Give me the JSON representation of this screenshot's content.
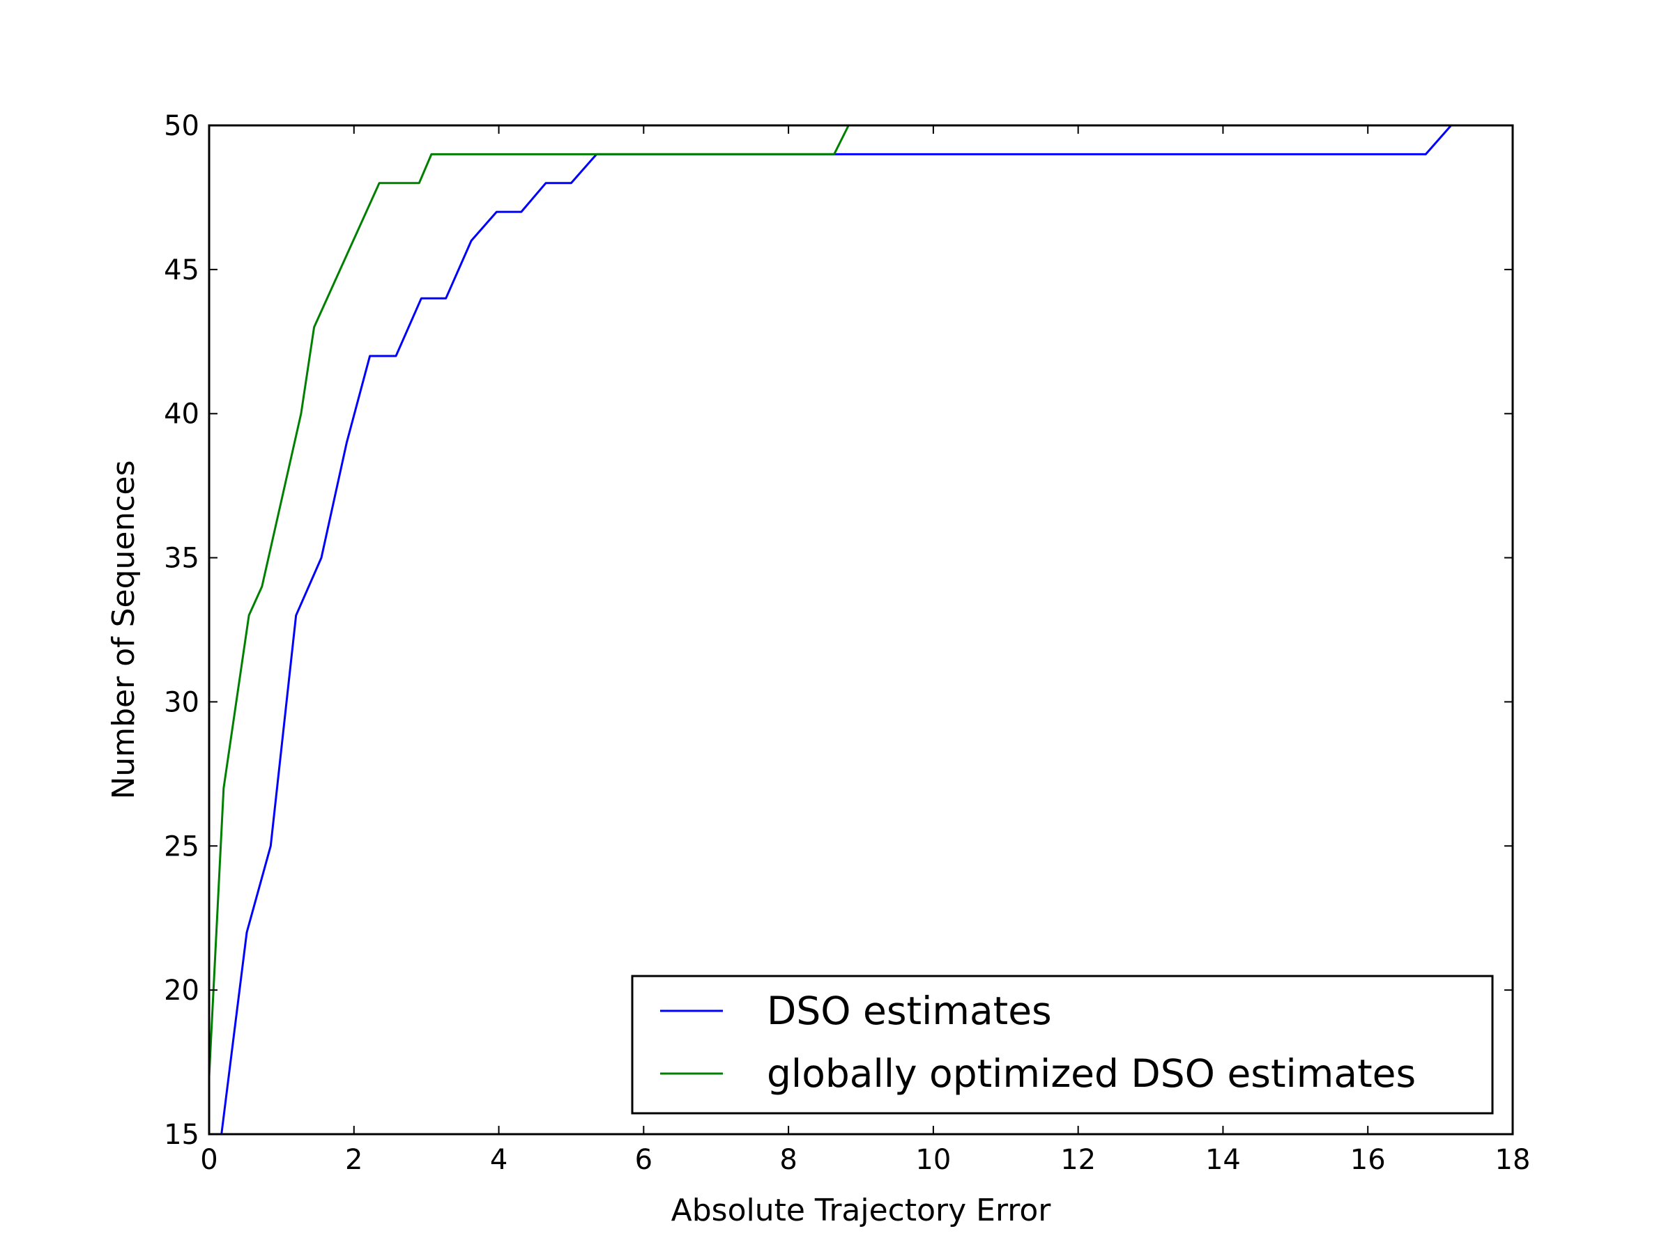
{
  "chart_data": {
    "type": "line",
    "title": "",
    "xlabel": "Absolute Trajectory Error",
    "ylabel": "Number of Sequences",
    "xlim": [
      0,
      18
    ],
    "ylim": [
      15,
      50
    ],
    "xticks": [
      0,
      2,
      4,
      6,
      8,
      10,
      12,
      14,
      16,
      18
    ],
    "yticks": [
      15,
      20,
      25,
      30,
      35,
      40,
      45,
      50
    ],
    "grid": false,
    "legend_position": "lower-right",
    "series": [
      {
        "name": "DSO estimates",
        "color": "#0000ff",
        "points": [
          [
            0.17,
            15
          ],
          [
            0.52,
            22
          ],
          [
            0.85,
            25
          ],
          [
            1.2,
            33
          ],
          [
            1.55,
            35
          ],
          [
            1.9,
            39
          ],
          [
            2.22,
            42
          ],
          [
            2.58,
            42
          ],
          [
            2.93,
            44
          ],
          [
            3.27,
            44
          ],
          [
            3.62,
            46
          ],
          [
            3.97,
            47
          ],
          [
            4.31,
            47
          ],
          [
            4.65,
            48
          ],
          [
            5.0,
            48
          ],
          [
            5.35,
            49
          ],
          [
            16.8,
            49
          ],
          [
            17.15,
            50
          ]
        ]
      },
      {
        "name": "globally optimized DSO estimates",
        "color": "#008000",
        "points": [
          [
            0.0,
            17
          ],
          [
            0.2,
            27
          ],
          [
            0.55,
            33
          ],
          [
            0.73,
            34
          ],
          [
            1.27,
            40
          ],
          [
            1.45,
            43
          ],
          [
            2.35,
            48
          ],
          [
            2.9,
            48
          ],
          [
            3.07,
            49
          ],
          [
            8.63,
            49
          ],
          [
            8.83,
            50
          ]
        ]
      }
    ]
  }
}
